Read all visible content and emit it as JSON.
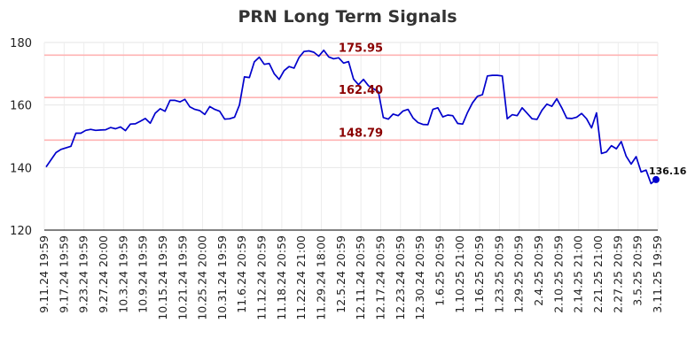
{
  "chart_data": {
    "type": "line",
    "title": "PRN Long Term Signals",
    "xlabel": "",
    "ylabel": "",
    "ylim": [
      120,
      180
    ],
    "yticks": [
      "120",
      "140",
      "160",
      "180"
    ],
    "xticks": [
      "9.11.24 19:59",
      "9.17.24 19:59",
      "9.23.24 19:59",
      "9.27.24 20:00",
      "10.3.24 19:59",
      "10.9.24 19:59",
      "10.15.24 19:59",
      "10.21.24 19:59",
      "10.25.24 20:00",
      "10.31.24 19:59",
      "11.6.24 20:59",
      "11.12.24 20:59",
      "11.18.24 20:59",
      "11.22.24 21:00",
      "11.29.24 18:00",
      "12.5.24 20:59",
      "12.11.24 20:59",
      "12.17.24 20:59",
      "12.23.24 20:59",
      "12.30.24 20:59",
      "1.6.25 20:59",
      "1.10.25 21:00",
      "1.16.25 20:59",
      "1.23.25 20:59",
      "1.29.25 20:59",
      "2.4.25 20:59",
      "2.10.25 20:59",
      "2.14.25 21:00",
      "2.21.25 21:00",
      "2.27.25 20:59",
      "3.5.25 20:59",
      "3.11.25 19:59"
    ],
    "grid": true,
    "horizontal_lines": [
      {
        "value": 175.95,
        "label": "175.95",
        "color": "#ffb3b3"
      },
      {
        "value": 162.4,
        "label": "162.40",
        "color": "#ffb3b3"
      },
      {
        "value": 148.79,
        "label": "148.79",
        "color": "#ffb3b3"
      }
    ],
    "series": [
      {
        "color": "#0000cc",
        "values": [
          140.2,
          142.5,
          144.8,
          145.8,
          146.3,
          146.8,
          151.0,
          151.0,
          151.9,
          152.2,
          151.9,
          152.0,
          152.1,
          152.8,
          152.4,
          153.0,
          151.8,
          153.9,
          154.0,
          154.8,
          155.7,
          154.2,
          157.4,
          158.8,
          158.0,
          161.5,
          161.5,
          161.0,
          161.8,
          159.4,
          158.6,
          158.2,
          157.0,
          159.5,
          158.6,
          158.0,
          155.5,
          155.6,
          156.1,
          160.0,
          169.0,
          168.8,
          173.8,
          175.3,
          173.0,
          173.3,
          170.0,
          168.2,
          171.0,
          172.3,
          171.8,
          175.2,
          177.1,
          177.3,
          176.9,
          175.6,
          177.5,
          175.4,
          174.8,
          175.1,
          173.4,
          173.9,
          168.3,
          166.5,
          168.2,
          166.2,
          165.2,
          164.3,
          156.0,
          155.5,
          157.1,
          156.6,
          158.1,
          158.6,
          155.9,
          154.4,
          153.8,
          153.7,
          158.6,
          159.1,
          156.2,
          156.8,
          156.6,
          154.1,
          153.9,
          157.6,
          160.7,
          162.8,
          163.3,
          169.3,
          169.5,
          169.5,
          169.3,
          155.6,
          156.9,
          156.6,
          159.1,
          157.4,
          155.6,
          155.4,
          158.3,
          160.3,
          159.6,
          162.0,
          159.1,
          155.8,
          155.7,
          156.1,
          157.3,
          155.6,
          152.7,
          157.5,
          144.5,
          145.0,
          147.0,
          146.0,
          148.3,
          143.6,
          141.1,
          143.5,
          138.6,
          139.2,
          134.9,
          136.16
        ]
      }
    ],
    "last_value": {
      "value": 136.16,
      "label": "136.16"
    }
  }
}
